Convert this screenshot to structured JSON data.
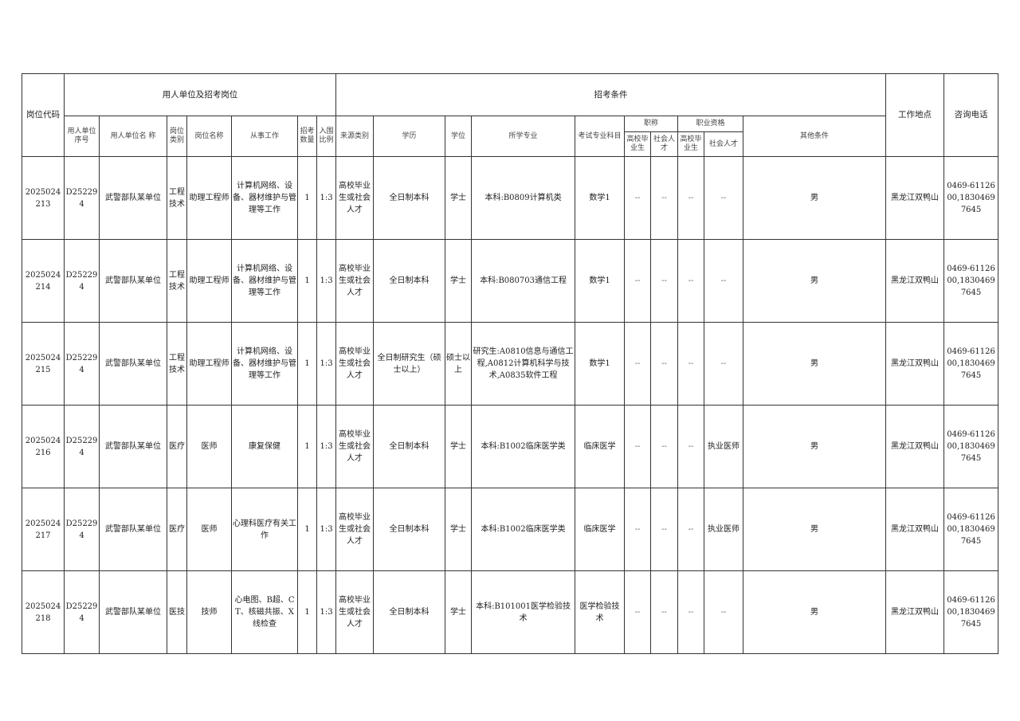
{
  "headers": {
    "code": "岗位代码",
    "group_unit": "用人单位及招考岗位",
    "group_conditions": "招考条件",
    "location": "工作地点",
    "phone": "咨询电话",
    "unit_seq": "用人单位序号",
    "unit_name": "用人单位名  称",
    "post_type": "岗位类别",
    "post_name": "岗位名称",
    "work": "从事工作",
    "count": "招考数量",
    "ratio": "入围比例",
    "source": "来源类别",
    "education": "学历",
    "degree": "学位",
    "major": "所学专业",
    "exam_subject": "考试专业科目",
    "title": "职称",
    "qualification": "职业资格",
    "grad": "高校毕业生",
    "social": "社会人才",
    "other": "其他条件"
  },
  "rows": [
    {
      "code": "2025024213",
      "seq": "D252294",
      "unit": "武警部队某单位",
      "type": "工程技术",
      "post": "助理工程师",
      "work": "计算机网络、设备、器材维护与管理等工作",
      "count": "1",
      "ratio": "1:3",
      "source": "高校毕业生或社会人才",
      "edu": "全日制本科",
      "degree": "学士",
      "major": "本科:B0809计算机类",
      "subject": "数学1",
      "t_grad": "--",
      "t_social": "--",
      "q_grad": "--",
      "q_social": "--",
      "other": "男",
      "loc": "黑龙江双鸭山",
      "phone": "0469-6112600,18304697645"
    },
    {
      "code": "2025024214",
      "seq": "D252294",
      "unit": "武警部队某单位",
      "type": "工程技术",
      "post": "助理工程师",
      "work": "计算机网络、设备、器材维护与管理等工作",
      "count": "1",
      "ratio": "1:3",
      "source": "高校毕业生或社会人才",
      "edu": "全日制本科",
      "degree": "学士",
      "major": "本科:B080703通信工程",
      "subject": "数学1",
      "t_grad": "--",
      "t_social": "--",
      "q_grad": "--",
      "q_social": "--",
      "other": "男",
      "loc": "黑龙江双鸭山",
      "phone": "0469-6112600,18304697645"
    },
    {
      "code": "2025024215",
      "seq": "D252294",
      "unit": "武警部队某单位",
      "type": "工程技术",
      "post": "助理工程师",
      "work": "计算机网络、设备、器材维护与管理等工作",
      "count": "1",
      "ratio": "1:3",
      "source": "高校毕业生或社会人才",
      "edu": "全日制研究生（硕士以上）",
      "degree": "硕士以上",
      "major": "研究生:A0810信息与通信工程,A0812计算机科学与技术,A0835软件工程",
      "subject": "数学1",
      "t_grad": "--",
      "t_social": "--",
      "q_grad": "--",
      "q_social": "--",
      "other": "男",
      "loc": "黑龙江双鸭山",
      "phone": "0469-6112600,18304697645"
    },
    {
      "code": "2025024216",
      "seq": "D252294",
      "unit": "武警部队某单位",
      "type": "医疗",
      "post": "医师",
      "work": "康复保健",
      "count": "1",
      "ratio": "1:3",
      "source": "高校毕业生或社会人才",
      "edu": "全日制本科",
      "degree": "学士",
      "major": "本科:B1002临床医学类",
      "subject": "临床医学",
      "t_grad": "--",
      "t_social": "--",
      "q_grad": "--",
      "q_social": "执业医师",
      "other": "男",
      "loc": "黑龙江双鸭山",
      "phone": "0469-6112600,18304697645"
    },
    {
      "code": "2025024217",
      "seq": "D252294",
      "unit": "武警部队某单位",
      "type": "医疗",
      "post": "医师",
      "work": "心理科医疗有关工作",
      "count": "1",
      "ratio": "1:3",
      "source": "高校毕业生或社会人才",
      "edu": "全日制本科",
      "degree": "学士",
      "major": "本科:B1002临床医学类",
      "subject": "临床医学",
      "t_grad": "--",
      "t_social": "--",
      "q_grad": "--",
      "q_social": "执业医师",
      "other": "男",
      "loc": "黑龙江双鸭山",
      "phone": "0469-6112600,18304697645"
    },
    {
      "code": "2025024218",
      "seq": "D252294",
      "unit": "武警部队某单位",
      "type": "医技",
      "post": "技师",
      "work": "心电图、B超、CT、核磁共振、X线检查",
      "count": "1",
      "ratio": "1:3",
      "source": "高校毕业生或社会人才",
      "edu": "全日制本科",
      "degree": "学士",
      "major": "本科:B101001医学检验技术",
      "subject": "医学检验技术",
      "t_grad": "--",
      "t_social": "--",
      "q_grad": "--",
      "q_social": "--",
      "other": "男",
      "loc": "黑龙江双鸭山",
      "phone": "0469-6112600,18304697645"
    }
  ]
}
